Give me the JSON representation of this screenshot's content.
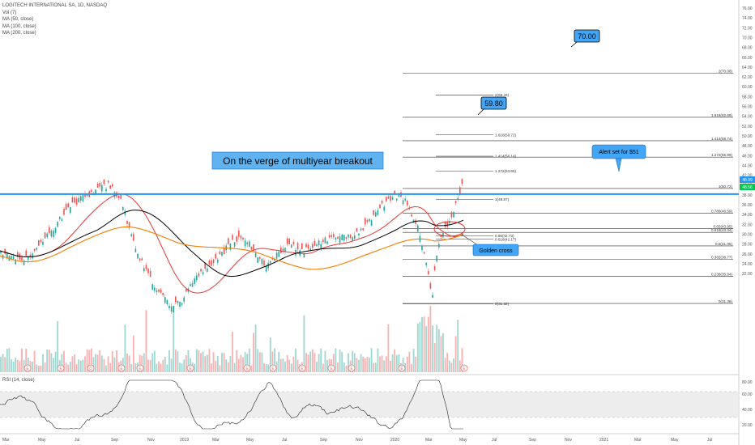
{
  "header": {
    "symbol_line": "LOGITECH INTERNATIONAL SA, 1D, NASDAQ",
    "indicators": [
      "Vol (7)",
      "MA (50, close)",
      "MA (100, close)",
      "MA (200, close)"
    ]
  },
  "rsi": {
    "label": "RSI (14, close)",
    "axis_ticks": [
      "80.00",
      "60.00",
      "40.00",
      "20.00"
    ]
  },
  "price_axis": {
    "ticks": [
      "76.00",
      "74.00",
      "72.00",
      "70.00",
      "68.00",
      "66.00",
      "64.00",
      "62.00",
      "60.00",
      "58.00",
      "56.00",
      "54.00",
      "52.00",
      "50.00",
      "48.00",
      "46.00",
      "44.00",
      "42.00",
      "40.00",
      "38.00",
      "36.00",
      "34.00",
      "32.00",
      "30.00",
      "28.00",
      "26.00",
      "24.00",
      "22.00"
    ],
    "last_price_tag": "48.99",
    "ma_price_tag": "48.56"
  },
  "time_axis": {
    "ticks": [
      "Mar",
      "May",
      "Jul",
      "Sep",
      "Nov",
      "2019",
      "Mar",
      "May",
      "Jul",
      "Sep",
      "Nov",
      "2020",
      "Mar",
      "May",
      "Jul",
      "Sep",
      "Nov",
      "2021",
      "Mar",
      "May",
      "Jul"
    ]
  },
  "annotations": {
    "headline": "On the verge of multiyear breakout",
    "target_high": "70.00",
    "target_mid": "59.80",
    "alert": "Alert set for $51",
    "golden_cross": "Golden cross"
  },
  "fib_left": [
    {
      "label": "2(66.43)",
      "price": 66.43
    },
    {
      "label": "1.618(59.72)",
      "price": 59.72
    },
    {
      "label": "1.414(56.14)",
      "price": 56.14
    },
    {
      "label": "1.272(53.65)",
      "price": 53.65
    },
    {
      "label": "1(48.87)",
      "price": 48.87
    },
    {
      "label": "0.65(42.73)",
      "price": 42.73
    },
    {
      "label": "0.618(42.17)",
      "price": 42.17
    },
    {
      "label": "0(31.32)",
      "price": 31.32
    }
  ],
  "fib_right": [
    {
      "label": "2(70.08)",
      "price": 70.08
    },
    {
      "label": "1.618(62.69)",
      "price": 62.69
    },
    {
      "label": "1.414(58.74)",
      "price": 58.74
    },
    {
      "label": "1.272(55.99)",
      "price": 55.99
    },
    {
      "label": "1(50.72)",
      "price": 50.72
    },
    {
      "label": "0.786(46.59)",
      "price": 46.59
    },
    {
      "label": "0.65(43.95)",
      "price": 43.95
    },
    {
      "label": "0.618(43.34)",
      "price": 43.34
    },
    {
      "label": "0.5(41.05)",
      "price": 41.05
    },
    {
      "label": "0.382(38.77)",
      "price": 38.77
    },
    {
      "label": "0.236(35.94)",
      "price": 35.94
    },
    {
      "label": "0(31.38)",
      "price": 31.38
    }
  ],
  "horizontal_level": {
    "price": 49.5,
    "color": "#2196f3"
  },
  "colors": {
    "up": "#26a69a",
    "down": "#ef5350",
    "ma50": "#e53935",
    "ma100": "#000000",
    "ma200": "#f57c00",
    "accent": "#42a5f5"
  },
  "event_markers": [
    "E",
    "E",
    "D",
    "E",
    "E",
    "E",
    "E",
    "E",
    "E",
    "E",
    "E",
    "E",
    "E"
  ]
}
